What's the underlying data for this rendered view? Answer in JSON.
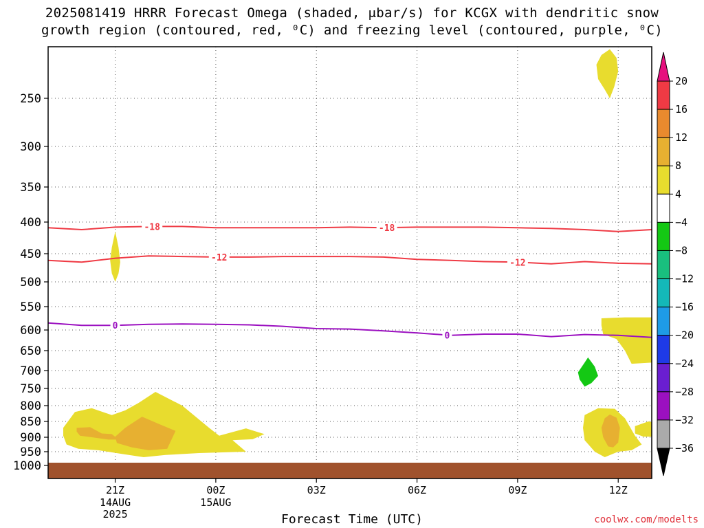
{
  "title": {
    "line1": "2025081419 HRRR Forecast Omega (shaded, μbar/s) for KCGX with dendritic snow",
    "line2": "growth region (contoured, red, ⁰C) and freezing level (contoured, purple, ⁰C)"
  },
  "credit": "coolwx.com/modelts",
  "chart_data": {
    "type": "heatmap",
    "xlabel": "Forecast Time (UTC)",
    "ylabel": "",
    "x_ticks": [
      {
        "label": "21Z",
        "sub": [
          "14AUG",
          "2025"
        ],
        "hour": 2
      },
      {
        "label": "00Z",
        "sub": [
          "15AUG"
        ],
        "hour": 5
      },
      {
        "label": "03Z",
        "sub": [],
        "hour": 8
      },
      {
        "label": "06Z",
        "sub": [],
        "hour": 11
      },
      {
        "label": "09Z",
        "sub": [],
        "hour": 14
      },
      {
        "label": "12Z",
        "sub": [],
        "hour": 17
      }
    ],
    "xlim_hours": [
      0,
      18
    ],
    "y_ticks": [
      250,
      300,
      350,
      400,
      450,
      500,
      550,
      600,
      650,
      700,
      750,
      800,
      850,
      900,
      950,
      1000
    ],
    "ylim_hpa": [
      200,
      1020
    ],
    "grid": true,
    "colorbar": {
      "labels": [
        "20",
        "16",
        "12",
        "8",
        "4",
        "−4",
        "−8",
        "−12",
        "−16",
        "−20",
        "−24",
        "−28",
        "−32",
        "−36"
      ],
      "colors": [
        "#ef3a44",
        "#e98a2e",
        "#e7b031",
        "#e8dc2e",
        "#ffffff",
        "#14c814",
        "#19bf7e",
        "#14b8b8",
        "#1e9be6",
        "#1e3ae6",
        "#6a1ed0",
        "#9b10c0",
        "#aaaaaa"
      ],
      "top_arrow_color": "#e6107e",
      "bottom_arrow_color": "#000000"
    },
    "contours": [
      {
        "name": "-18",
        "color": "#ef3a44",
        "kind": "dgz",
        "points": [
          [
            0,
            409
          ],
          [
            1,
            412
          ],
          [
            2,
            408
          ],
          [
            3,
            407
          ],
          [
            4,
            407
          ],
          [
            5,
            409
          ],
          [
            6,
            409
          ],
          [
            7,
            409
          ],
          [
            8,
            409
          ],
          [
            9,
            408
          ],
          [
            10,
            409
          ],
          [
            11,
            408
          ],
          [
            12,
            408
          ],
          [
            13,
            408
          ],
          [
            14,
            409
          ],
          [
            15,
            410
          ],
          [
            16,
            412
          ],
          [
            17,
            415
          ],
          [
            18,
            412
          ]
        ],
        "labels": [
          {
            "text": "-18",
            "x": 3.1
          },
          {
            "text": "-18",
            "x": 10.1
          }
        ]
      },
      {
        "name": "-12",
        "color": "#ef3a44",
        "kind": "dgz",
        "points": [
          [
            0,
            462
          ],
          [
            1,
            465
          ],
          [
            2,
            458
          ],
          [
            3,
            454
          ],
          [
            4,
            455
          ],
          [
            5,
            456
          ],
          [
            6,
            456
          ],
          [
            7,
            455
          ],
          [
            8,
            455
          ],
          [
            9,
            455
          ],
          [
            10,
            456
          ],
          [
            11,
            460
          ],
          [
            12,
            462
          ],
          [
            13,
            464
          ],
          [
            14,
            465
          ],
          [
            15,
            468
          ],
          [
            16,
            464
          ],
          [
            17,
            467
          ],
          [
            18,
            468
          ]
        ],
        "labels": [
          {
            "text": "-12",
            "x": 5.1
          },
          {
            "text": "-12",
            "x": 14.0
          }
        ]
      },
      {
        "name": "0",
        "color": "#9b10c0",
        "kind": "freezing",
        "points": [
          [
            0,
            585
          ],
          [
            1,
            590
          ],
          [
            2,
            590
          ],
          [
            3,
            588
          ],
          [
            4,
            587
          ],
          [
            5,
            588
          ],
          [
            6,
            589
          ],
          [
            7,
            592
          ],
          [
            8,
            597
          ],
          [
            9,
            598
          ],
          [
            10,
            602
          ],
          [
            11,
            607
          ],
          [
            12,
            613
          ],
          [
            13,
            610
          ],
          [
            14,
            610
          ],
          [
            15,
            616
          ],
          [
            16,
            611
          ],
          [
            17,
            613
          ],
          [
            18,
            618
          ]
        ],
        "labels": [
          {
            "text": "0",
            "x": 2.0
          },
          {
            "text": "0",
            "x": 11.9
          }
        ]
      }
    ],
    "regions": [
      {
        "name": "omega-4to8-top",
        "color": "#e8dc2e",
        "points": [
          [
            16.35,
            215
          ],
          [
            16.5,
            205
          ],
          [
            16.75,
            199
          ],
          [
            16.95,
            208
          ],
          [
            17.0,
            222
          ],
          [
            16.88,
            238
          ],
          [
            16.75,
            250
          ],
          [
            16.6,
            241
          ],
          [
            16.4,
            230
          ]
        ]
      },
      {
        "name": "omega-4to8-early",
        "color": "#e8dc2e",
        "points": [
          [
            2.0,
            415
          ],
          [
            2.1,
            440
          ],
          [
            2.15,
            465
          ],
          [
            2.1,
            485
          ],
          [
            2.0,
            500
          ],
          [
            1.9,
            485
          ],
          [
            1.85,
            462
          ],
          [
            1.9,
            440
          ]
        ]
      },
      {
        "name": "omega-4to8-low",
        "color": "#e8dc2e",
        "points": [
          [
            0.45,
            870
          ],
          [
            0.8,
            820
          ],
          [
            1.3,
            808
          ],
          [
            1.9,
            830
          ],
          [
            2.3,
            815
          ],
          [
            2.7,
            792
          ],
          [
            3.2,
            760
          ],
          [
            4.0,
            800
          ],
          [
            4.8,
            870
          ],
          [
            5.1,
            895
          ],
          [
            5.9,
            872
          ],
          [
            6.45,
            890
          ],
          [
            6.1,
            907
          ],
          [
            5.5,
            910
          ],
          [
            5.9,
            950
          ],
          [
            4.5,
            955
          ],
          [
            3.5,
            962
          ],
          [
            2.85,
            970
          ],
          [
            2.2,
            958
          ],
          [
            1.5,
            945
          ],
          [
            0.9,
            940
          ],
          [
            0.55,
            925
          ],
          [
            0.45,
            895
          ]
        ]
      },
      {
        "name": "omega-8to12-low-left",
        "color": "#e7b031",
        "points": [
          [
            0.85,
            870
          ],
          [
            1.25,
            868
          ],
          [
            1.6,
            888
          ],
          [
            1.9,
            890
          ],
          [
            2.1,
            908
          ],
          [
            1.8,
            908
          ],
          [
            1.3,
            900
          ],
          [
            0.95,
            895
          ],
          [
            0.85,
            882
          ]
        ]
      },
      {
        "name": "omega-8to12-low-mid",
        "color": "#e7b031",
        "points": [
          [
            2.0,
            898
          ],
          [
            2.3,
            870
          ],
          [
            2.8,
            835
          ],
          [
            3.35,
            860
          ],
          [
            3.8,
            880
          ],
          [
            3.55,
            940
          ],
          [
            3.0,
            945
          ],
          [
            2.5,
            935
          ],
          [
            2.05,
            920
          ]
        ]
      },
      {
        "name": "omega-4to8-late",
        "color": "#e8dc2e",
        "points": [
          [
            16.0,
            830
          ],
          [
            16.4,
            808
          ],
          [
            16.9,
            810
          ],
          [
            17.2,
            840
          ],
          [
            17.5,
            895
          ],
          [
            17.7,
            925
          ],
          [
            17.4,
            945
          ],
          [
            17.0,
            950
          ],
          [
            16.6,
            970
          ],
          [
            16.3,
            950
          ],
          [
            16.0,
            910
          ],
          [
            15.95,
            870
          ]
        ]
      },
      {
        "name": "omega-8to12-late",
        "color": "#e7b031",
        "points": [
          [
            16.6,
            840
          ],
          [
            16.75,
            828
          ],
          [
            16.95,
            838
          ],
          [
            17.05,
            870
          ],
          [
            17.0,
            918
          ],
          [
            16.85,
            935
          ],
          [
            16.7,
            932
          ],
          [
            16.55,
            900
          ],
          [
            16.5,
            870
          ]
        ]
      },
      {
        "name": "omega-4to8-edge",
        "color": "#e8dc2e",
        "points": [
          [
            17.5,
            865
          ],
          [
            17.9,
            850
          ],
          [
            18.0,
            852
          ],
          [
            18.0,
            898
          ],
          [
            17.75,
            898
          ],
          [
            17.5,
            888
          ]
        ]
      },
      {
        "name": "omega-4to8-right",
        "color": "#e8dc2e",
        "points": [
          [
            16.5,
            575
          ],
          [
            17.2,
            573
          ],
          [
            18.0,
            573
          ],
          [
            18.0,
            680
          ],
          [
            17.4,
            683
          ],
          [
            17.2,
            650
          ],
          [
            16.95,
            622
          ],
          [
            16.55,
            610
          ],
          [
            16.5,
            590
          ]
        ]
      },
      {
        "name": "omega-neg4to8",
        "color": "#14c814",
        "points": [
          [
            15.8,
            705
          ],
          [
            16.0,
            680
          ],
          [
            16.1,
            667
          ],
          [
            16.3,
            690
          ],
          [
            16.4,
            715
          ],
          [
            16.2,
            735
          ],
          [
            16.0,
            745
          ],
          [
            15.85,
            725
          ]
        ]
      }
    ],
    "ground": {
      "color": "#a0522d",
      "top_hpa": 990
    }
  }
}
